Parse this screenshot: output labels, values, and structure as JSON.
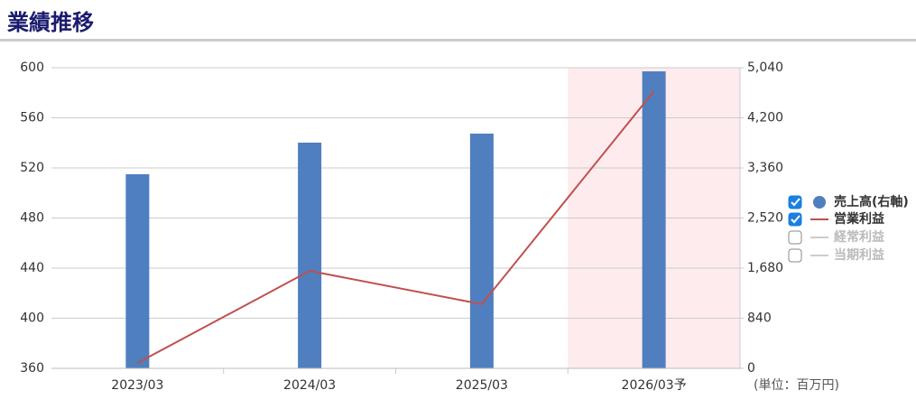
{
  "chart_data": {
    "type": "bar_line",
    "title": "業績推移",
    "unit_label": "(単位：百万円)",
    "categories": [
      "2023/03",
      "2024/03",
      "2025/03",
      "2026/03予"
    ],
    "highlight_category": 3,
    "highlight_color": "#fdebee",
    "series": [
      {
        "name": "売上高(右軸)",
        "type": "bar",
        "axis": "y2",
        "color": "#4f7fbf",
        "checked": true,
        "values": [
          3254,
          3784,
          3935,
          4979
        ]
      },
      {
        "name": "営業利益",
        "type": "line",
        "axis": "y",
        "color": "#c0504d",
        "checked": true,
        "values": [
          364.3,
          437.8,
          411.2,
          581.3
        ]
      },
      {
        "name": "経常利益",
        "type": "line",
        "axis": "y",
        "color": "#cccccc",
        "checked": false,
        "values": [
          null,
          null,
          null,
          null
        ]
      },
      {
        "name": "当期利益",
        "type": "line",
        "axis": "y",
        "color": "#cccccc",
        "checked": false,
        "values": [
          null,
          null,
          null,
          null
        ]
      }
    ],
    "ylim": [
      360,
      600
    ],
    "yticks": [
      360,
      400,
      440,
      480,
      520,
      560,
      600
    ],
    "y2lim": [
      0,
      5040
    ],
    "y2ticks": [
      0,
      840,
      {
        "value": 1680,
        "label": "1,680"
      },
      {
        "value": 2520,
        "label": "2,520"
      },
      {
        "value": 3360,
        "label": "3,360"
      },
      {
        "value": 4200,
        "label": "4,200"
      },
      {
        "value": 5040,
        "label": "5,040"
      }
    ],
    "grid": true
  }
}
